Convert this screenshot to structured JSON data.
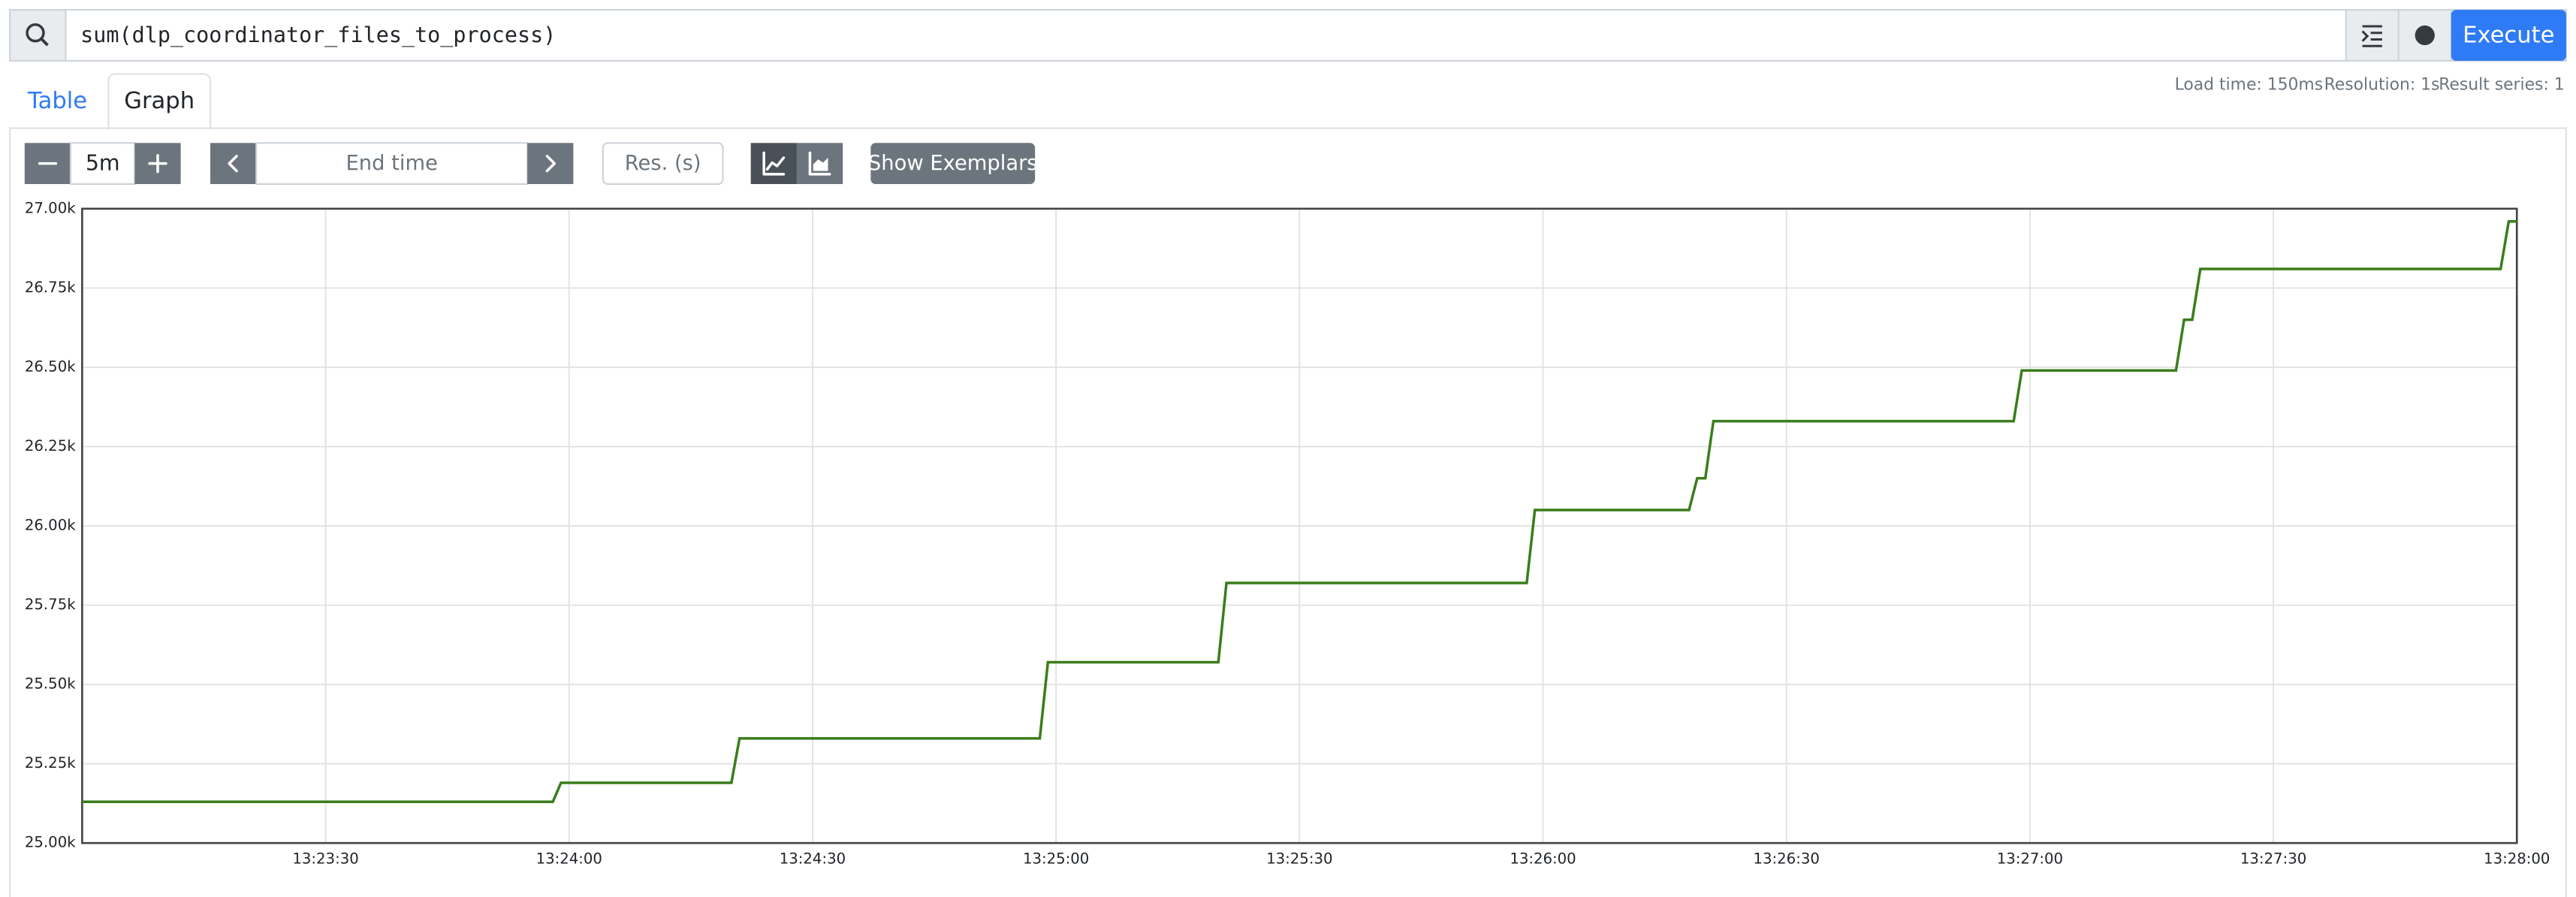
{
  "ui": {
    "query": "sum(dlp_coordinator_files_to_process)",
    "execute": "Execute",
    "tabs": [
      "Table",
      "Graph"
    ],
    "stats": [
      "Load time: 150ms",
      "Resolution: 1s",
      "Result series: 1"
    ],
    "range": "5m",
    "end_time": "End time",
    "resolution": "Res. (s)",
    "exemplars": "Show Exemplars"
  },
  "chart_data": {
    "type": "line",
    "color": "#3a7d1c",
    "x": [
      "13:23:00",
      "13:23:58",
      "13:23:59",
      "13:24:20",
      "13:24:21",
      "13:24:58",
      "13:24:59",
      "13:25:20",
      "13:25:21",
      "13:25:58",
      "13:25:59",
      "13:26:18",
      "13:26:19",
      "13:26:20",
      "13:26:21",
      "13:26:58",
      "13:26:59",
      "13:27:18",
      "13:27:19",
      "13:27:20",
      "13:27:21",
      "13:27:58",
      "13:27:59",
      "13:28:00"
    ],
    "values": [
      25130,
      25130,
      25190,
      25190,
      25330,
      25330,
      25570,
      25570,
      25820,
      25820,
      26050,
      26050,
      26150,
      26150,
      26330,
      26330,
      26490,
      26490,
      26650,
      26650,
      26810,
      26810,
      26960,
      26960
    ],
    "xlim": [
      "13:23:00",
      "13:28:00"
    ],
    "xticks": [
      "13:23:30",
      "13:24:00",
      "13:24:30",
      "13:25:00",
      "13:25:30",
      "13:26:00",
      "13:26:30",
      "13:27:00",
      "13:27:30",
      "13:28:00"
    ],
    "ylim": [
      25000,
      27000
    ],
    "yticks": [
      {
        "value": 25000,
        "label": "25.00k"
      },
      {
        "value": 25250,
        "label": "25.25k"
      },
      {
        "value": 25500,
        "label": "25.50k"
      },
      {
        "value": 25750,
        "label": "25.75k"
      },
      {
        "value": 26000,
        "label": "26.00k"
      },
      {
        "value": 26250,
        "label": "26.25k"
      },
      {
        "value": 26500,
        "label": "26.50k"
      },
      {
        "value": 26750,
        "label": "26.75k"
      },
      {
        "value": 27000,
        "label": "27.00k"
      }
    ],
    "grid": true
  }
}
